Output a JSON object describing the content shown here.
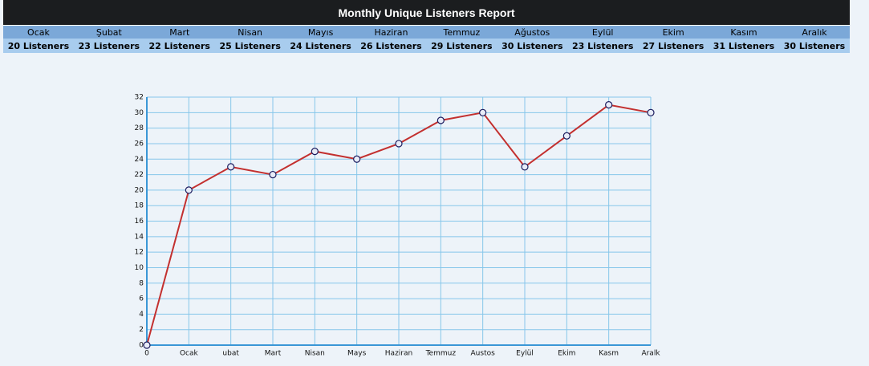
{
  "table": {
    "title": "Monthly Unique Listeners Report",
    "header": [
      "Ocak",
      "Şubat",
      "Mart",
      "Nisan",
      "Mayıs",
      "Haziran",
      "Temmuz",
      "Ağustos",
      "Eylül",
      "Ekim",
      "Kasım",
      "Aralık"
    ],
    "row": [
      "20 Listeners",
      "23 Listeners",
      "22 Listeners",
      "25 Listeners",
      "24 Listeners",
      "26 Listeners",
      "29 Listeners",
      "30 Listeners",
      "23 Listeners",
      "27 Listeners",
      "31 Listeners",
      "30 Listeners"
    ]
  },
  "chart_data": {
    "type": "line",
    "categories": [
      "0",
      "Ocak",
      "ubat",
      "Mart",
      "Nisan",
      "Mays",
      "Haziran",
      "Temmuz",
      "Austos",
      "Eylül",
      "Ekim",
      "Kasm",
      "Aralk"
    ],
    "series": [
      {
        "color": "#c3302f",
        "values": [
          0,
          20,
          23,
          22,
          25,
          24,
          26,
          29,
          30,
          23,
          27,
          31,
          30
        ]
      }
    ],
    "ylim": [
      0,
      32
    ],
    "yticks": [
      0,
      2,
      4,
      6,
      8,
      10,
      12,
      14,
      16,
      18,
      20,
      22,
      24,
      26,
      28,
      30,
      32
    ],
    "grid": true
  }
}
